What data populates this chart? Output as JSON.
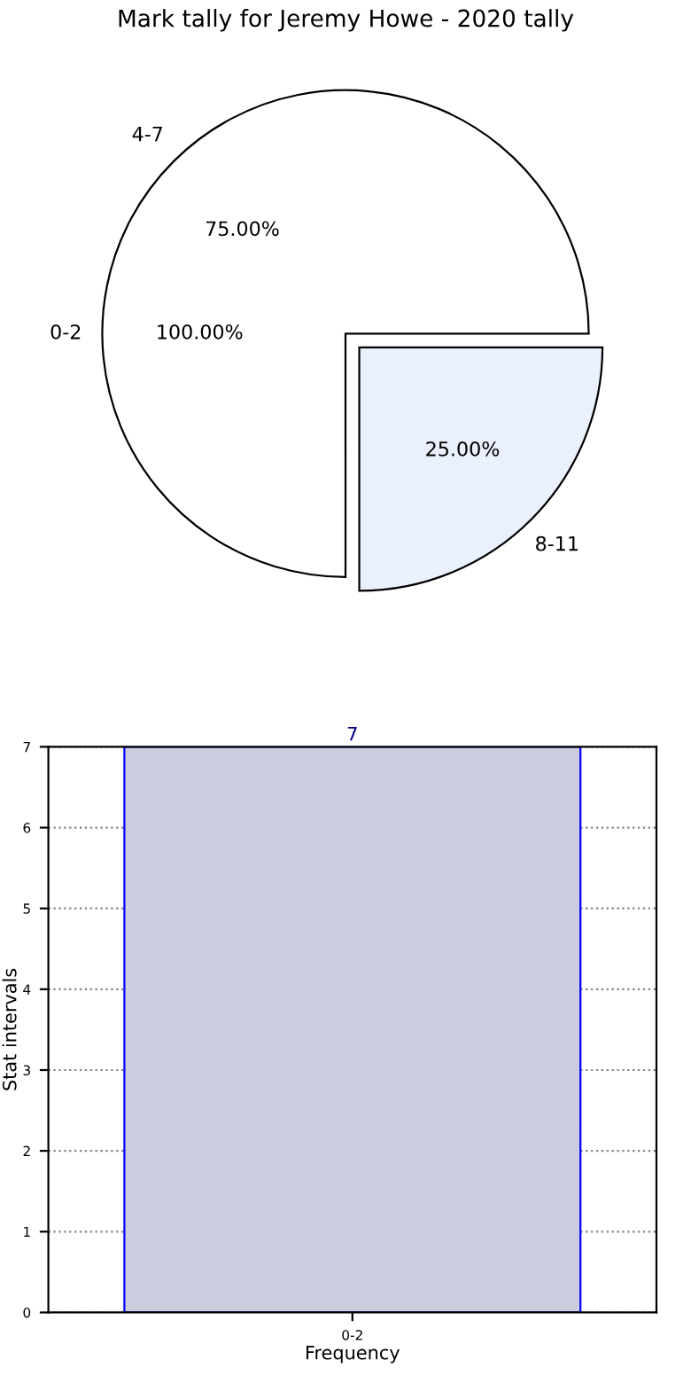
{
  "chart_data": [
    {
      "type": "pie",
      "title": "Mark tally for Jeremy Howe - 2020 tally",
      "categories": [
        "4-7",
        "8-11"
      ],
      "values": [
        75,
        25
      ],
      "value_labels": [
        "75.00%",
        "25.00%"
      ],
      "colors": [
        "#ffffff",
        "#eaf0fd"
      ],
      "annotations": [
        "0-2",
        "100.00%"
      ]
    },
    {
      "type": "bar",
      "categories": [
        "0-2"
      ],
      "values": [
        7
      ],
      "color": "#ccccdf",
      "ylim": [
        0,
        7
      ],
      "yticks": [
        0,
        1,
        2,
        3,
        4,
        5,
        6,
        7
      ],
      "xlabel": "Frequency",
      "ylabel": "Stat intervals",
      "grid": true,
      "data_labels": true
    }
  ]
}
